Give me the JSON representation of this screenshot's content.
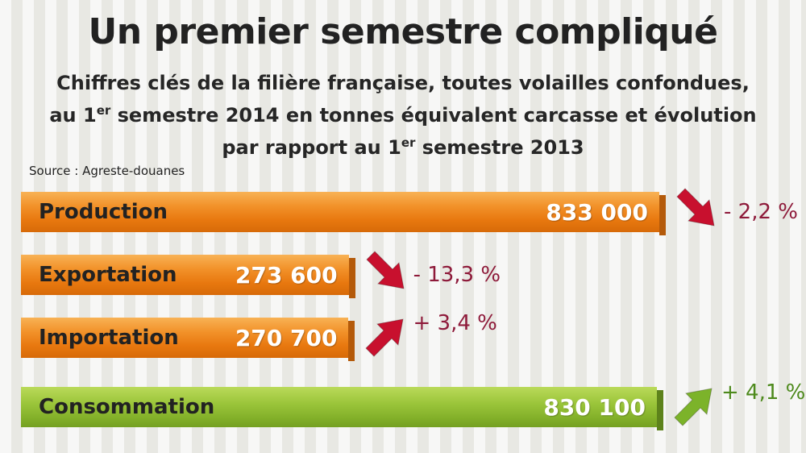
{
  "title": "Un premier semestre compliqué",
  "subtitle": {
    "line1": "Chiffres clés de la filière française, toutes volailles confondues,",
    "line2_a": "au 1",
    "line2_sup": "er",
    "line2_b": " semestre 2014 en tonnes équivalent carcasse et évolution",
    "line3_a": "par rapport au 1",
    "line3_sup": "er",
    "line3_b": " semestre 2013"
  },
  "source": "Source : Agreste-douanes",
  "colors": {
    "orange": "#f2922a",
    "green": "#9cc63b",
    "arrow_red": "#c8102e",
    "arrow_green": "#7cb32a",
    "change_red": "#8e1a3a",
    "change_green": "#4e8a1d"
  },
  "chart_data": {
    "type": "bar",
    "orientation": "horizontal",
    "categories": [
      "Production",
      "Exportation",
      "Importation",
      "Consommation"
    ],
    "values": [
      833000,
      273600,
      270700,
      830100
    ],
    "value_labels": [
      "833 000",
      "273 600",
      "270 700",
      "830 100"
    ],
    "changes": [
      -2.2,
      -13.3,
      3.4,
      4.1
    ],
    "change_labels": [
      "- 2,2 %",
      "- 13,3 %",
      "+ 3,4 %",
      "+ 4,1 %"
    ],
    "directions": [
      "down",
      "down",
      "up",
      "up"
    ],
    "bar_colors": [
      "orange",
      "orange",
      "orange",
      "green"
    ],
    "unit": "tonnes équivalent carcasse"
  }
}
